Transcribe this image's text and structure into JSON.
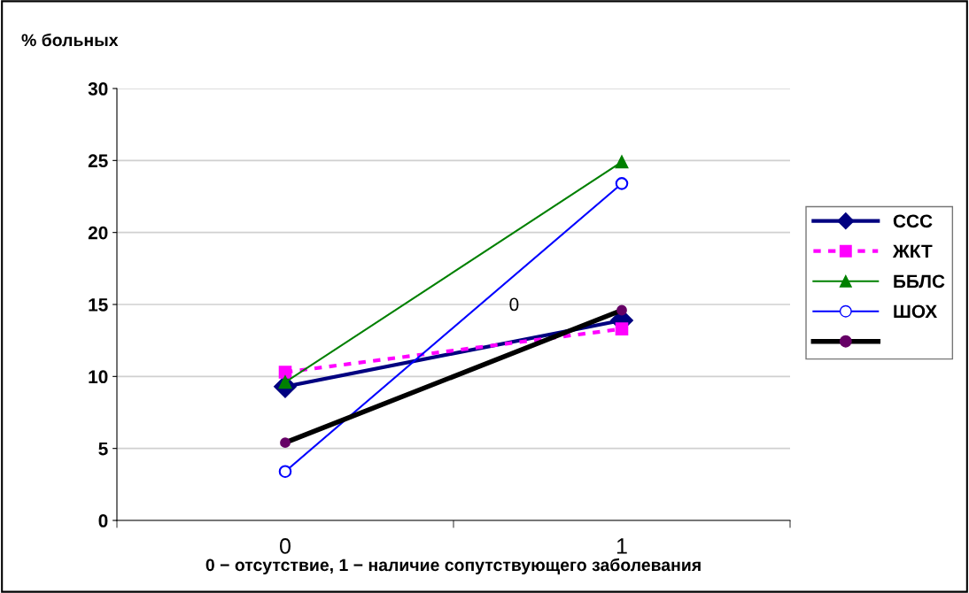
{
  "chart_data": {
    "type": "line",
    "ylabel": "% больных",
    "xlabel": "0 − отсутствие, 1 − наличие сопутствующего заболевания",
    "categories": [
      "0",
      "1"
    ],
    "ylim": [
      0,
      30
    ],
    "yticks": [
      0,
      5,
      10,
      15,
      20,
      25,
      30
    ],
    "grid": "y",
    "legend": "right",
    "annotations": [
      "0"
    ],
    "series": [
      {
        "name": "ССС",
        "color": "#000080",
        "marker": "diamond",
        "line_style": "solid",
        "values": [
          9.3,
          13.9
        ]
      },
      {
        "name": "ЖКТ",
        "color": "#ff00ff",
        "marker": "square",
        "line_style": "dashed",
        "values": [
          10.3,
          13.3
        ]
      },
      {
        "name": "ББЛС",
        "color": "#008000",
        "marker": "triangle",
        "line_style": "solid",
        "values": [
          9.6,
          24.9
        ]
      },
      {
        "name": "ШОХ",
        "color": "#0000ff",
        "marker": "circle",
        "line_style": "solid",
        "values": [
          3.4,
          23.4
        ]
      },
      {
        "color": "#000000",
        "colors": [
          "#660066",
          "#660066"
        ],
        "marker": "circle",
        "line_style": "solid",
        "values": [
          5.4,
          14.6
        ]
      }
    ]
  }
}
